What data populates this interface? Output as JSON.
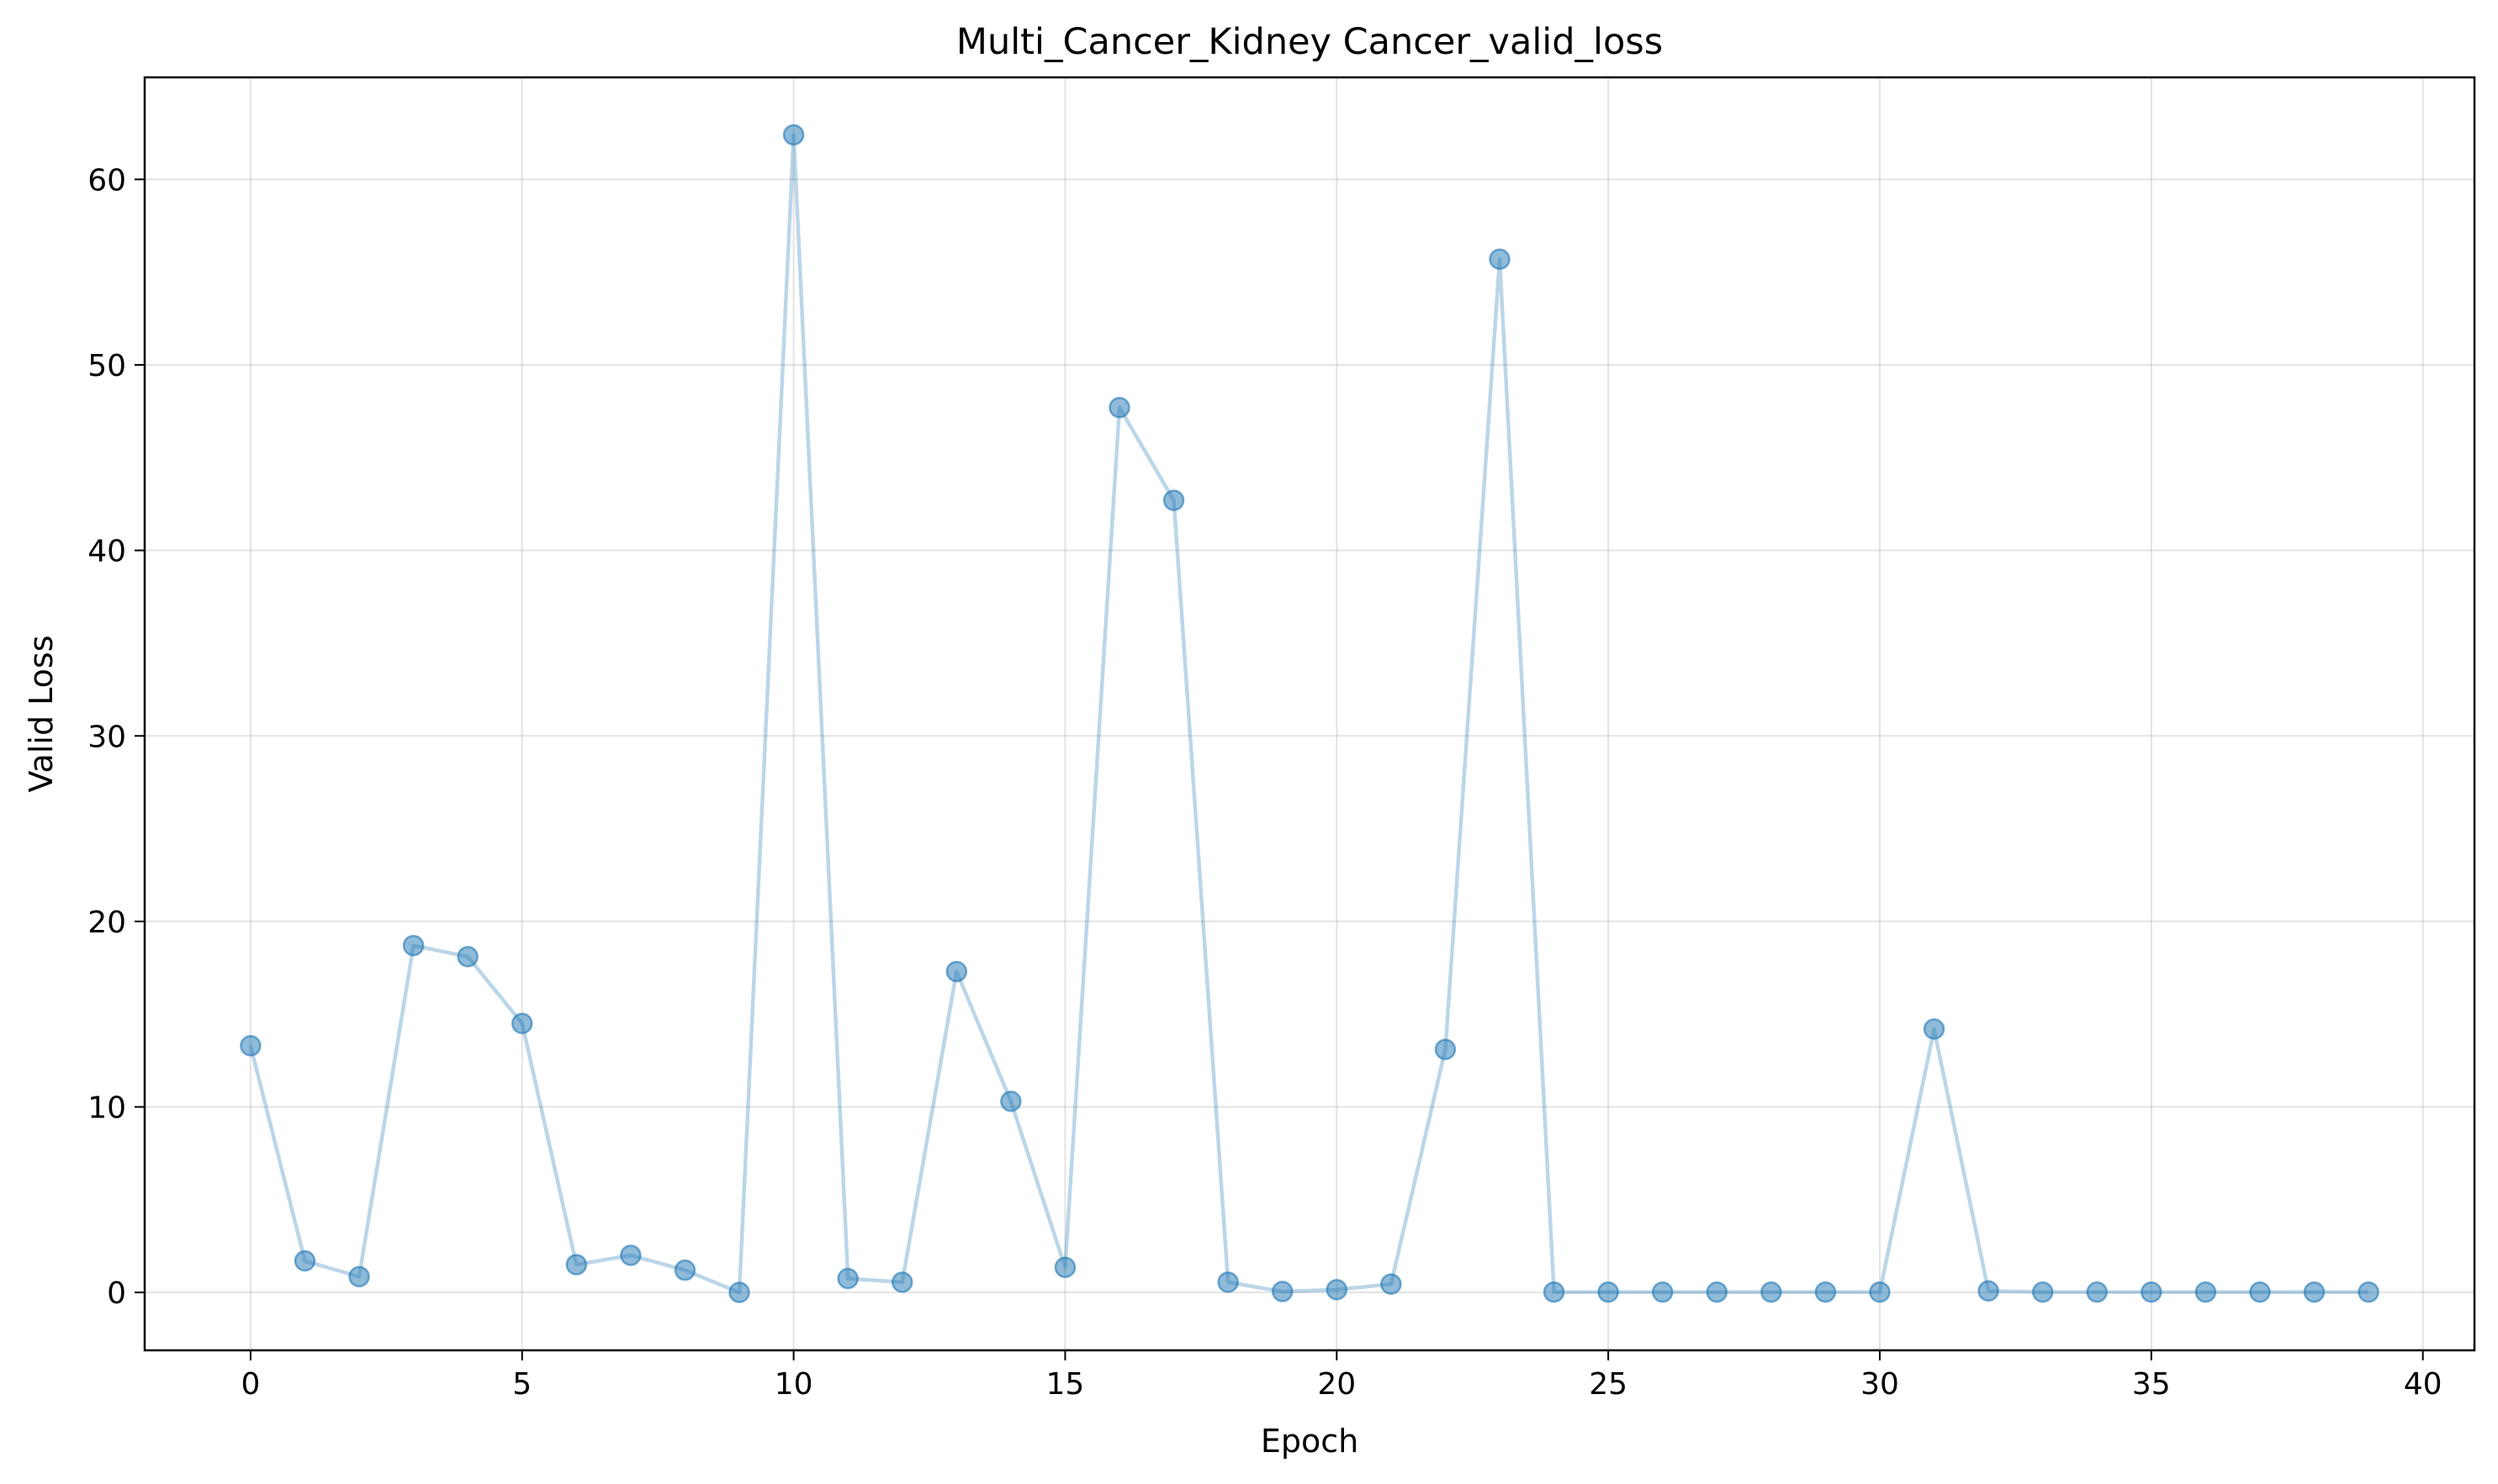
{
  "chart_data": {
    "type": "line",
    "title": "Multi_Cancer_Kidney Cancer_valid_loss",
    "xlabel": "Epoch",
    "ylabel": "Valid Loss",
    "xlim": [
      -1.95,
      40.95
    ],
    "ylim": [
      -3.12,
      65.5
    ],
    "xticks": [
      0,
      5,
      10,
      15,
      20,
      25,
      30,
      35,
      40
    ],
    "yticks": [
      0,
      10,
      20,
      30,
      40,
      50,
      60
    ],
    "grid": true,
    "series": [
      {
        "color": "#1f77b4",
        "x": [
          0,
          1,
          2,
          3,
          4,
          5,
          6,
          7,
          8,
          9,
          10,
          11,
          12,
          13,
          14,
          15,
          16,
          17,
          18,
          19,
          20,
          21,
          22,
          23,
          24,
          25,
          26,
          27,
          28,
          29,
          30,
          31,
          32,
          33,
          34,
          35,
          36,
          37,
          38,
          39
        ],
        "y": [
          13.3,
          1.7,
          0.85,
          18.7,
          18.1,
          14.5,
          1.5,
          2.0,
          1.2,
          0.0,
          62.4,
          0.75,
          0.55,
          17.3,
          10.3,
          1.35,
          47.7,
          42.7,
          0.55,
          0.05,
          0.15,
          0.45,
          13.1,
          55.7,
          0.02,
          0.02,
          0.02,
          0.02,
          0.02,
          0.02,
          0.02,
          14.2,
          0.08,
          0.02,
          0.02,
          0.02,
          0.02,
          0.02,
          0.02,
          0.02
        ]
      }
    ]
  }
}
